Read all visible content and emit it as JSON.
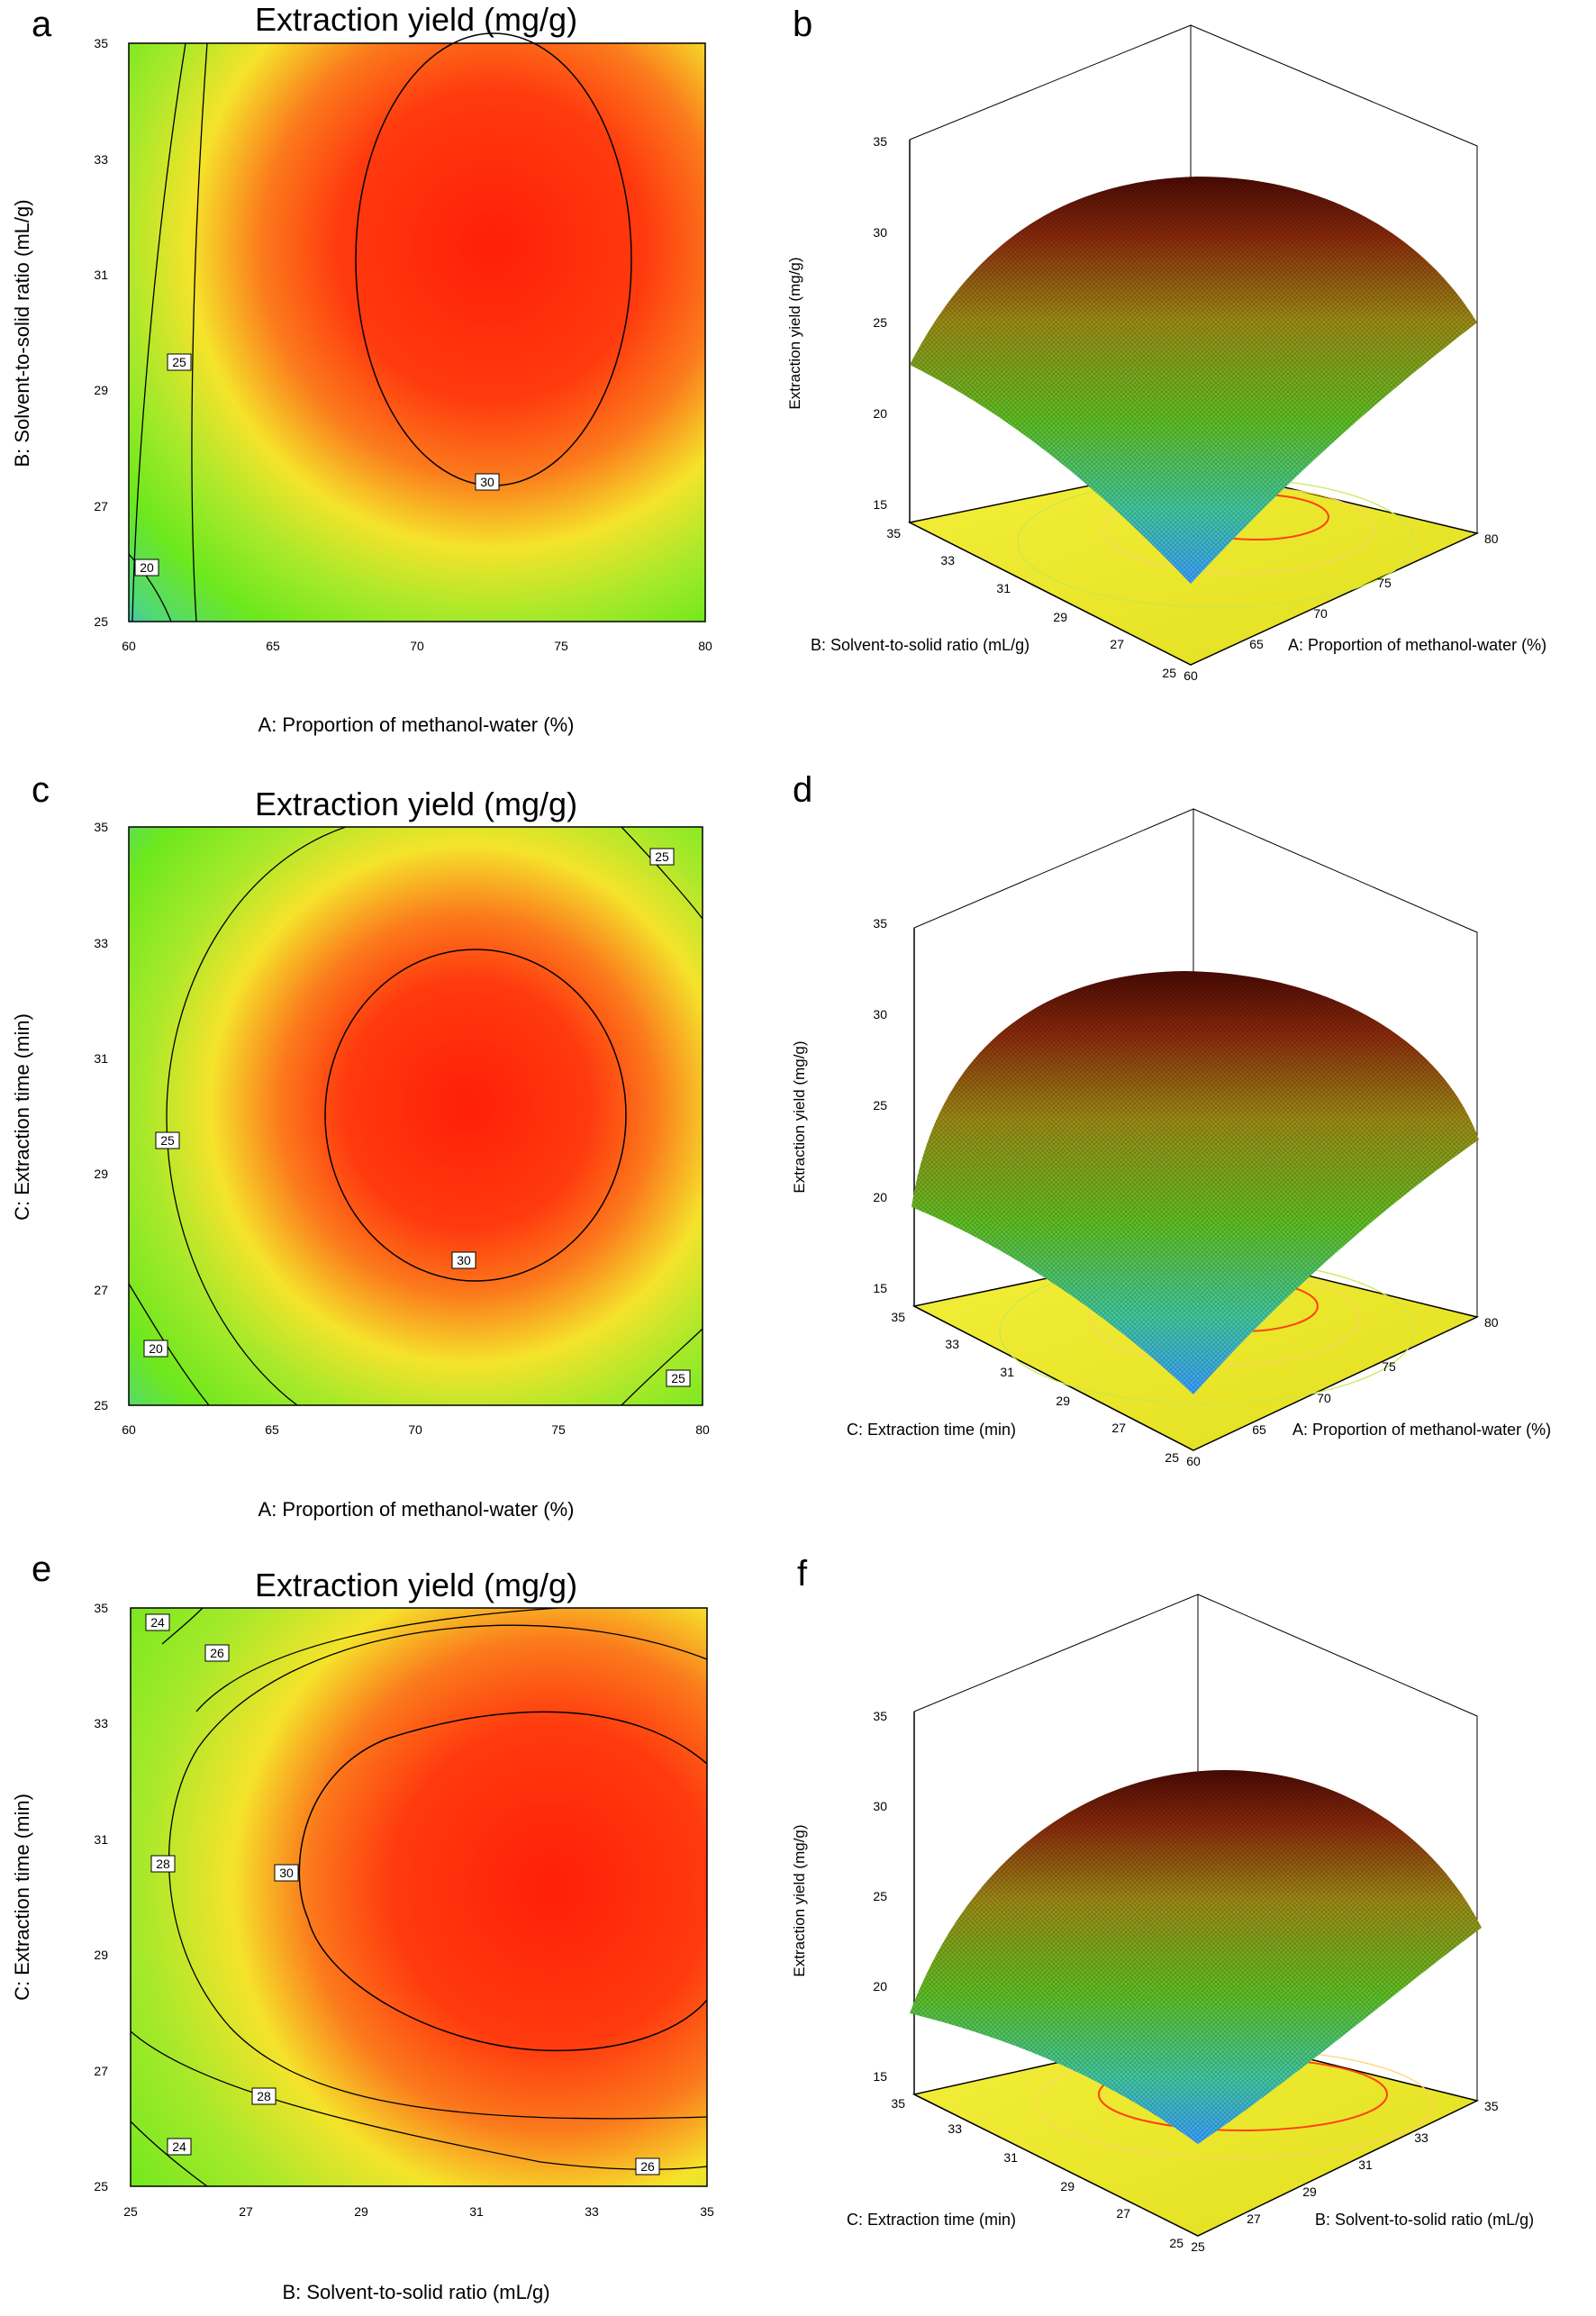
{
  "chart_data": [
    {
      "panel": "a",
      "type": "contour",
      "title": "Extraction yield (mg/g)",
      "xlabel": "A: Proportion of methanol-water (%)",
      "ylabel": "B: Solvent-to-solid ratio (mL/g)",
      "xlim": [
        60,
        80
      ],
      "ylim": [
        25,
        35
      ],
      "xticks": [
        "60",
        "65",
        "70",
        "75",
        "80"
      ],
      "yticks": [
        "25",
        "27",
        "29",
        "31",
        "33",
        "35"
      ],
      "contour_labels": [
        "20",
        "25",
        "30"
      ],
      "optimum": {
        "x": 72.5,
        "y": 31.0,
        "value": 32.5
      },
      "colors": {
        "high": "#ff2a0a",
        "mid": "#f5e32b",
        "low": "#34a5ff"
      }
    },
    {
      "panel": "b",
      "type": "surface",
      "zlabel": "Extraction yield (mg/g)",
      "xlabel": "A: Proportion of methanol-water (%)",
      "ylabel": "B: Solvent-to-solid ratio (mL/g)",
      "zlim": [
        15,
        35
      ],
      "zticks": [
        "15",
        "20",
        "25",
        "30",
        "35"
      ],
      "xticks": [
        "60",
        "65",
        "70",
        "75",
        "80"
      ],
      "yticks": [
        "25",
        "27",
        "29",
        "31",
        "33",
        "35"
      ],
      "peak": 32.5
    },
    {
      "panel": "c",
      "type": "contour",
      "title": "Extraction yield (mg/g)",
      "xlabel": "A: Proportion of methanol-water (%)",
      "ylabel": "C: Extraction time (min)",
      "xlim": [
        60,
        80
      ],
      "ylim": [
        25,
        35
      ],
      "xticks": [
        "60",
        "65",
        "70",
        "75",
        "80"
      ],
      "yticks": [
        "25",
        "27",
        "29",
        "31",
        "33",
        "35"
      ],
      "contour_labels": [
        "20",
        "25",
        "25",
        "25",
        "30"
      ],
      "optimum": {
        "x": 71.8,
        "y": 30.2,
        "value": 32.5
      },
      "colors": {
        "high": "#ff2a0a",
        "mid": "#f5e32b",
        "low": "#34a5ff"
      }
    },
    {
      "panel": "d",
      "type": "surface",
      "zlabel": "Extraction yield (mg/g)",
      "xlabel": "A: Proportion of methanol-water (%)",
      "ylabel": "C: Extraction time (min)",
      "zlim": [
        15,
        35
      ],
      "zticks": [
        "15",
        "20",
        "25",
        "30",
        "35"
      ],
      "xticks": [
        "60",
        "65",
        "70",
        "75",
        "80"
      ],
      "yticks": [
        "25",
        "27",
        "29",
        "31",
        "33",
        "35"
      ],
      "peak": 32.5
    },
    {
      "panel": "e",
      "type": "contour",
      "title": "Extraction yield (mg/g)",
      "xlabel": "B: Solvent-to-solid ratio (mL/g)",
      "ylabel": "C: Extraction time (min)",
      "xlim": [
        25,
        35
      ],
      "ylim": [
        25,
        35
      ],
      "xticks": [
        "25",
        "27",
        "29",
        "31",
        "33",
        "35"
      ],
      "yticks": [
        "25",
        "27",
        "29",
        "31",
        "33",
        "35"
      ],
      "contour_labels": [
        "24",
        "26",
        "28",
        "30",
        "28",
        "24",
        "26"
      ],
      "optimum": {
        "x": 32.3,
        "y": 30.2,
        "value": 31.5
      },
      "colors": {
        "high": "#ff2a0a",
        "mid": "#f5e32b",
        "low": "#34a5ff"
      }
    },
    {
      "panel": "f",
      "type": "surface",
      "zlabel": "Extraction yield (mg/g)",
      "xlabel": "B: Solvent-to-solid ratio (mL/g)",
      "ylabel": "C: Extraction time (min)",
      "zlim": [
        15,
        35
      ],
      "zticks": [
        "15",
        "20",
        "25",
        "30",
        "35"
      ],
      "xticks": [
        "25",
        "27",
        "29",
        "31",
        "33",
        "35"
      ],
      "yticks": [
        "25",
        "27",
        "29",
        "31",
        "33",
        "35"
      ],
      "peak": 31.5
    }
  ]
}
